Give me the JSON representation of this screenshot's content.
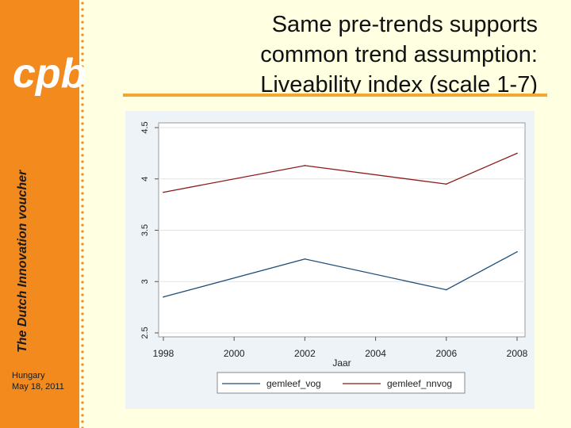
{
  "slide": {
    "title_lines": [
      "Same pre-trends supports",
      "common trend assumption:",
      "Liveability index (scale 1-7)"
    ],
    "side_title": "The Dutch Innovation voucher",
    "footer_place": "Hungary",
    "footer_date": "May 18, 2011",
    "logo_text": "cpb"
  },
  "colors": {
    "sidebar": "#f28a1e",
    "background": "#ffffe1",
    "rule": "#f0a830",
    "series_vog": "#1f4e79",
    "series_nnvog": "#8b1a1a"
  },
  "chart_data": {
    "type": "line",
    "xlabel": "Jaar",
    "ylabel": "",
    "xlim": [
      1998,
      2008
    ],
    "ylim": [
      2.5,
      4.5
    ],
    "xticks": [
      "1998",
      "2000",
      "2002",
      "2004",
      "2006",
      "2008"
    ],
    "yticks": [
      "2.5",
      "3",
      "3.5",
      "4",
      "4.5"
    ],
    "grid": true,
    "legend_position": "bottom",
    "series": [
      {
        "name": "gemleef_vog",
        "x": [
          1998,
          2002,
          2006,
          2008
        ],
        "values": [
          2.85,
          3.22,
          2.92,
          3.29
        ]
      },
      {
        "name": "gemleef_nnvog",
        "x": [
          1998,
          2002,
          2006,
          2008
        ],
        "values": [
          3.87,
          4.13,
          3.95,
          4.25
        ]
      }
    ]
  }
}
